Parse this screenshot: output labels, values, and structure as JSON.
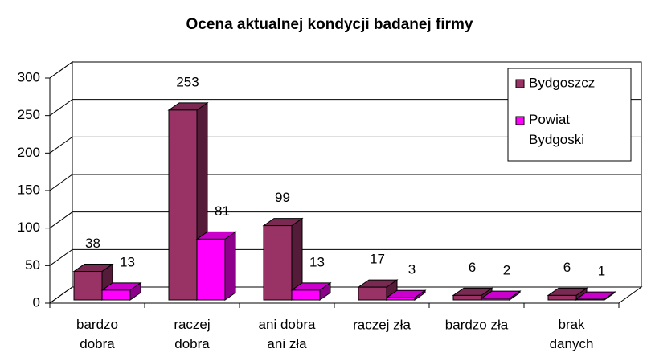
{
  "chart_data": {
    "type": "bar3d",
    "title": "Ocena aktualnej kondycji badanej firmy",
    "categories": [
      "bardzo\ndobra",
      "raczej\ndobra",
      "ani dobra\nani zła",
      "raczej zła",
      "bardzo zła",
      "brak\ndanych"
    ],
    "series": [
      {
        "name": "Bydgoszcz",
        "color": "#993366",
        "values": [
          38,
          253,
          99,
          17,
          6,
          6
        ]
      },
      {
        "name": "Powiat\nBydgoski",
        "color": "#ff00ff",
        "values": [
          13,
          81,
          13,
          3,
          2,
          1
        ]
      }
    ],
    "ylim": [
      0,
      300
    ],
    "yticks": [
      0,
      50,
      100,
      150,
      200,
      250,
      300
    ],
    "grid": true,
    "legend": "top-right"
  }
}
